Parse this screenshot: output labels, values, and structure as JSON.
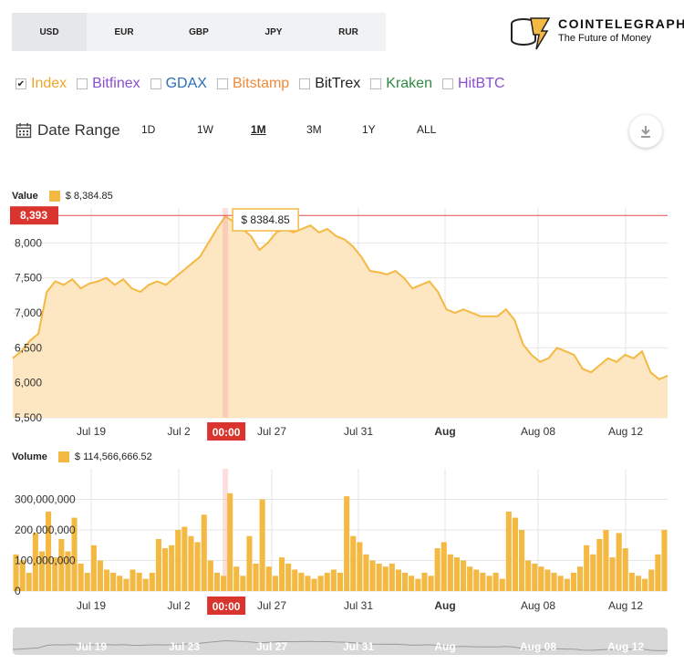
{
  "currency_tabs": [
    "USD",
    "EUR",
    "GBP",
    "JPY",
    "RUR"
  ],
  "active_currency": "USD",
  "logo": {
    "title": "COINTELEGRAPH",
    "subtitle": "The Future of Money"
  },
  "exchanges": [
    {
      "name": "Index",
      "checked": true,
      "color": "#f0a52b"
    },
    {
      "name": "Bitfinex",
      "checked": false,
      "color": "#8a4fd0"
    },
    {
      "name": "GDAX",
      "checked": false,
      "color": "#2a6fb8"
    },
    {
      "name": "Bitstamp",
      "checked": false,
      "color": "#ef8a3a"
    },
    {
      "name": "BitTrex",
      "checked": false,
      "color": "#222222"
    },
    {
      "name": "Kraken",
      "checked": false,
      "color": "#2e8b3e"
    },
    {
      "name": "HitBTC",
      "checked": false,
      "color": "#8a4fd0"
    }
  ],
  "date_range": {
    "label": "Date Range",
    "options": [
      "1D",
      "1W",
      "1M",
      "3M",
      "1Y",
      "ALL"
    ],
    "active": "1M"
  },
  "value_chart": {
    "label": "Value",
    "legend_value": "$ 8,384.85",
    "current_label": "8,393",
    "tooltip": "$ 8384.85"
  },
  "volume_chart": {
    "label": "Volume",
    "legend_value": "$ 114,566,666.52"
  },
  "cursor_time": "00:00",
  "chart_data": [
    {
      "type": "area",
      "x_ticks": [
        "Jul 19",
        "Jul 2",
        "Jul 27",
        "Jul 31",
        "Aug",
        "Aug 08",
        "Aug 12"
      ],
      "y_ticks": [
        "5,500",
        "6,000",
        "6,500",
        "7,000",
        "7,500",
        "8,000"
      ],
      "ylim": [
        5500,
        8500
      ],
      "reference_line": 8393,
      "values": [
        6350,
        6450,
        6600,
        6700,
        7300,
        7450,
        7400,
        7480,
        7350,
        7420,
        7450,
        7500,
        7400,
        7480,
        7350,
        7300,
        7400,
        7450,
        7400,
        7500,
        7600,
        7700,
        7800,
        8000,
        8200,
        8384,
        8300,
        8200,
        8100,
        7900,
        8000,
        8150,
        8200,
        8150,
        8200,
        8250,
        8150,
        8200,
        8100,
        8050,
        7950,
        7800,
        7600,
        7580,
        7550,
        7600,
        7500,
        7350,
        7400,
        7450,
        7300,
        7050,
        7000,
        7050,
        7000,
        6950,
        6950,
        6950,
        7050,
        6900,
        6550,
        6400,
        6300,
        6350,
        6500,
        6450,
        6400,
        6200,
        6150,
        6250,
        6350,
        6300,
        6400,
        6350,
        6450,
        6150,
        6050,
        6100
      ],
      "grid": true
    },
    {
      "type": "bar",
      "x_ticks": [
        "Jul 19",
        "Jul 2",
        "Jul 27",
        "Jul 31",
        "Aug",
        "Aug 08",
        "Aug 12"
      ],
      "y_ticks": [
        "0",
        "100,000,000",
        "200,000,000",
        "300,000,000"
      ],
      "ylim": [
        0,
        400000000
      ],
      "values": [
        120,
        100,
        60,
        190,
        130,
        260,
        110,
        170,
        130,
        240,
        90,
        60,
        150,
        100,
        70,
        60,
        50,
        40,
        70,
        60,
        40,
        60,
        170,
        140,
        150,
        200,
        210,
        180,
        160,
        250,
        100,
        60,
        50,
        320,
        80,
        50,
        180,
        90,
        300,
        80,
        50,
        110,
        90,
        70,
        60,
        50,
        40,
        50,
        60,
        70,
        60,
        310,
        180,
        160,
        120,
        100,
        90,
        80,
        90,
        70,
        60,
        50,
        40,
        60,
        50,
        140,
        160,
        120,
        110,
        100,
        80,
        70,
        60,
        50,
        60,
        40,
        260,
        240,
        200,
        100,
        90,
        80,
        70,
        60,
        50,
        40,
        60,
        80,
        150,
        120,
        170,
        200,
        110,
        190,
        140,
        60,
        50,
        40,
        70,
        120,
        200
      ]
    }
  ]
}
